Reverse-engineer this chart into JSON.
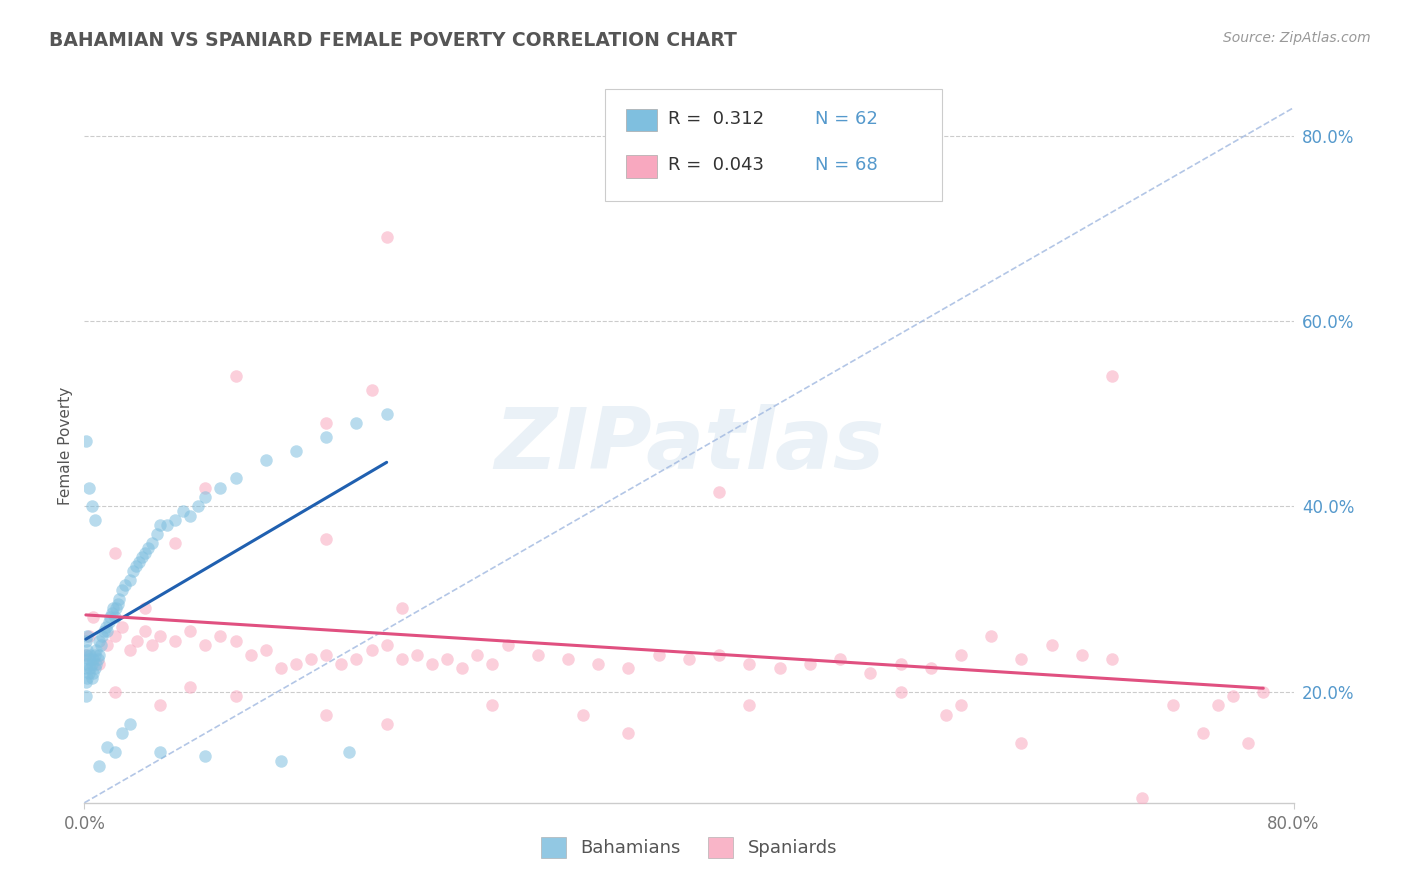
{
  "title": "BAHAMIAN VS SPANIARD FEMALE POVERTY CORRELATION CHART",
  "source_text": "Source: ZipAtlas.com",
  "ylabel": "Female Poverty",
  "xlim": [
    0.0,
    0.8
  ],
  "ylim": [
    0.08,
    0.85
  ],
  "legend_R": [
    0.312,
    0.043
  ],
  "legend_N": [
    62,
    68
  ],
  "bahamian_color": "#7fbfdf",
  "spaniard_color": "#f8a8bf",
  "bahamian_trend_color": "#2060b0",
  "spaniard_trend_color": "#e05080",
  "diag_color": "#a0b8e0",
  "background_color": "#ffffff",
  "grid_color": "#cccccc",
  "title_color": "#555555",
  "right_tick_color": "#5599cc",
  "marker_size": 9,
  "marker_alpha": 0.55,
  "trend_lw": 2.2,
  "bahamians_x": [
    0.001,
    0.001,
    0.001,
    0.001,
    0.001,
    0.002,
    0.002,
    0.002,
    0.002,
    0.003,
    0.003,
    0.004,
    0.004,
    0.005,
    0.005,
    0.006,
    0.006,
    0.007,
    0.007,
    0.008,
    0.008,
    0.009,
    0.01,
    0.01,
    0.011,
    0.012,
    0.013,
    0.014,
    0.015,
    0.016,
    0.017,
    0.018,
    0.019,
    0.02,
    0.021,
    0.022,
    0.023,
    0.025,
    0.027,
    0.03,
    0.032,
    0.034,
    0.036,
    0.038,
    0.04,
    0.042,
    0.045,
    0.048,
    0.05,
    0.055,
    0.06,
    0.065,
    0.07,
    0.075,
    0.08,
    0.09,
    0.1,
    0.12,
    0.14,
    0.16,
    0.18,
    0.2
  ],
  "bahamians_y": [
    0.195,
    0.21,
    0.225,
    0.24,
    0.255,
    0.215,
    0.23,
    0.245,
    0.26,
    0.22,
    0.235,
    0.225,
    0.24,
    0.215,
    0.23,
    0.22,
    0.235,
    0.225,
    0.24,
    0.23,
    0.245,
    0.235,
    0.24,
    0.255,
    0.25,
    0.26,
    0.265,
    0.27,
    0.265,
    0.275,
    0.28,
    0.285,
    0.29,
    0.28,
    0.29,
    0.295,
    0.3,
    0.31,
    0.315,
    0.32,
    0.33,
    0.335,
    0.34,
    0.345,
    0.35,
    0.355,
    0.36,
    0.37,
    0.38,
    0.38,
    0.385,
    0.395,
    0.39,
    0.4,
    0.41,
    0.42,
    0.43,
    0.45,
    0.46,
    0.475,
    0.49,
    0.5
  ],
  "bahamians_extra_x": [
    0.001,
    0.003,
    0.005,
    0.007,
    0.01,
    0.015,
    0.02,
    0.025,
    0.03,
    0.05,
    0.08,
    0.13,
    0.175
  ],
  "bahamians_extra_y": [
    0.47,
    0.42,
    0.4,
    0.385,
    0.12,
    0.14,
    0.135,
    0.155,
    0.165,
    0.135,
    0.13,
    0.125,
    0.135
  ],
  "spaniards_x": [
    0.001,
    0.003,
    0.006,
    0.01,
    0.015,
    0.02,
    0.025,
    0.03,
    0.035,
    0.04,
    0.045,
    0.05,
    0.06,
    0.07,
    0.08,
    0.09,
    0.1,
    0.11,
    0.12,
    0.13,
    0.14,
    0.15,
    0.16,
    0.17,
    0.18,
    0.19,
    0.2,
    0.21,
    0.22,
    0.23,
    0.24,
    0.25,
    0.26,
    0.27,
    0.28,
    0.3,
    0.32,
    0.34,
    0.36,
    0.38,
    0.4,
    0.42,
    0.44,
    0.46,
    0.48,
    0.5,
    0.52,
    0.54,
    0.56,
    0.58,
    0.6,
    0.62,
    0.64,
    0.66,
    0.68,
    0.7,
    0.72,
    0.74,
    0.75,
    0.76,
    0.77,
    0.78,
    0.68,
    0.42,
    0.2,
    0.16,
    0.1,
    0.06
  ],
  "spaniards_y": [
    0.24,
    0.26,
    0.28,
    0.23,
    0.25,
    0.26,
    0.27,
    0.245,
    0.255,
    0.265,
    0.25,
    0.26,
    0.255,
    0.265,
    0.25,
    0.26,
    0.255,
    0.24,
    0.245,
    0.225,
    0.23,
    0.235,
    0.24,
    0.23,
    0.235,
    0.245,
    0.25,
    0.235,
    0.24,
    0.23,
    0.235,
    0.225,
    0.24,
    0.23,
    0.25,
    0.24,
    0.235,
    0.23,
    0.225,
    0.24,
    0.235,
    0.24,
    0.23,
    0.225,
    0.23,
    0.235,
    0.22,
    0.23,
    0.225,
    0.24,
    0.26,
    0.235,
    0.25,
    0.24,
    0.235,
    0.085,
    0.185,
    0.155,
    0.185,
    0.195,
    0.145,
    0.2,
    0.54,
    0.415,
    0.69,
    0.49,
    0.54,
    0.36
  ],
  "spaniards_extra_x": [
    0.02,
    0.05,
    0.07,
    0.1,
    0.16,
    0.2,
    0.27,
    0.33,
    0.44,
    0.58,
    0.54,
    0.36,
    0.57,
    0.62,
    0.02,
    0.04,
    0.08,
    0.16,
    0.19,
    0.21
  ],
  "spaniards_extra_y": [
    0.2,
    0.185,
    0.205,
    0.195,
    0.175,
    0.165,
    0.185,
    0.175,
    0.185,
    0.185,
    0.2,
    0.155,
    0.175,
    0.145,
    0.35,
    0.29,
    0.42,
    0.365,
    0.525,
    0.29
  ]
}
